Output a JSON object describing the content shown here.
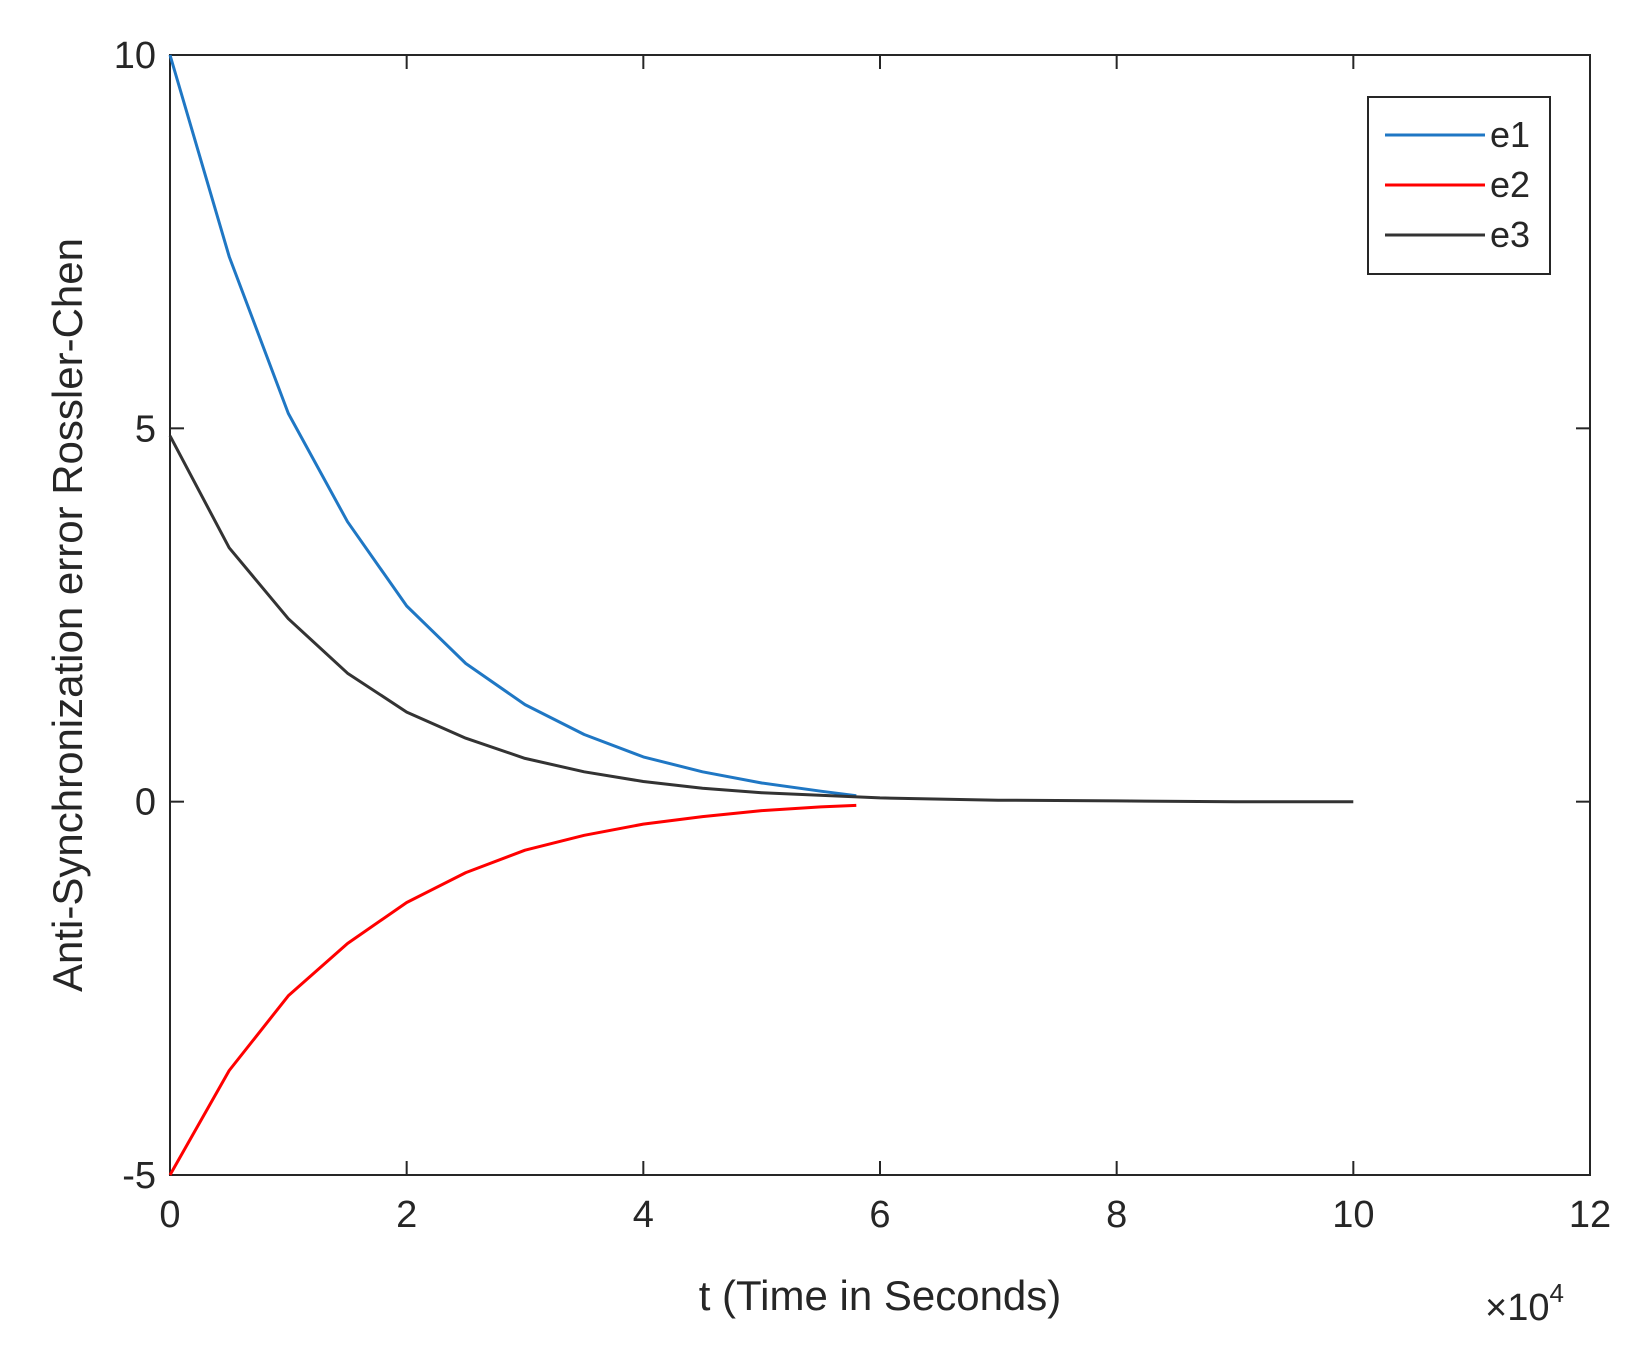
{
  "chart_data": {
    "type": "line",
    "title": "",
    "xlabel": "t (Time in Seconds)",
    "ylabel": "Anti-Synchronization error Rossler-Chen",
    "x_exponent_label": "×10",
    "x_exponent_power": "4",
    "xlim": [
      0,
      12
    ],
    "ylim": [
      -5,
      10
    ],
    "x_ticks": [
      0,
      2,
      4,
      6,
      8,
      10,
      12
    ],
    "x_tick_labels": [
      "0",
      "2",
      "4",
      "6",
      "8",
      "10",
      "12"
    ],
    "y_ticks": [
      -5,
      0,
      5,
      10
    ],
    "y_tick_labels": [
      "-5",
      "0",
      "5",
      "10"
    ],
    "grid": false,
    "legend_position": "top-right",
    "series": [
      {
        "name": "e1",
        "color": "#1f77c4",
        "x": [
          0,
          0.5,
          1,
          1.5,
          2,
          2.5,
          3,
          3.5,
          4,
          4.5,
          5,
          5.5,
          5.8
        ],
        "y": [
          10,
          7.3,
          5.2,
          3.75,
          2.62,
          1.85,
          1.3,
          0.9,
          0.6,
          0.4,
          0.25,
          0.14,
          0.08
        ]
      },
      {
        "name": "e2",
        "color": "#ff0000",
        "x": [
          0,
          0.5,
          1,
          1.5,
          2,
          2.5,
          3,
          3.5,
          4,
          4.5,
          5,
          5.5,
          5.8
        ],
        "y": [
          -5,
          -3.6,
          -2.6,
          -1.9,
          -1.35,
          -0.95,
          -0.65,
          -0.45,
          -0.3,
          -0.2,
          -0.12,
          -0.07,
          -0.05
        ]
      },
      {
        "name": "e3",
        "color": "#333333",
        "x": [
          0,
          0.5,
          1,
          1.5,
          2,
          2.5,
          3,
          3.5,
          4,
          4.5,
          5,
          6,
          7,
          8,
          9,
          10
        ],
        "y": [
          4.9,
          3.4,
          2.45,
          1.72,
          1.2,
          0.85,
          0.58,
          0.4,
          0.27,
          0.18,
          0.12,
          0.05,
          0.02,
          0.01,
          0.0,
          0.0
        ]
      }
    ]
  }
}
